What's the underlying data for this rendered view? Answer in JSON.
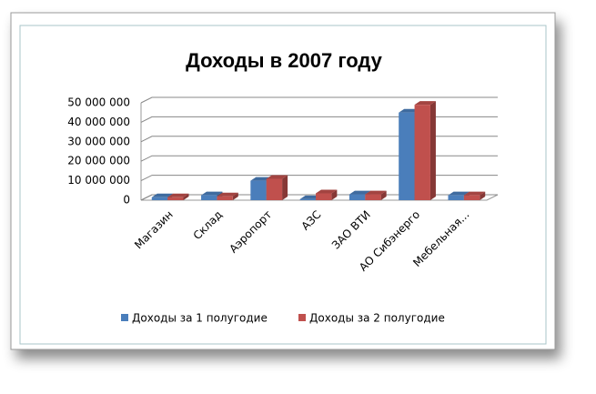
{
  "chart_data": {
    "type": "bar3d",
    "title": "Доходы в 2007 году",
    "categories": [
      "Магазин",
      "Склад",
      "Аэропорт",
      "АЗС",
      "ЗАО ВТИ",
      "АО Сибэнерго",
      "Мебельная..."
    ],
    "series": [
      {
        "name": "Доходы за 1 полугодие",
        "color": "#4a7ebb",
        "values": [
          1500000,
          2500000,
          10000000,
          500000,
          3000000,
          45000000,
          2500000
        ]
      },
      {
        "name": "Доходы за 2 полугодие",
        "color": "#c0504d",
        "values": [
          1500000,
          2000000,
          11000000,
          3500000,
          3000000,
          49000000,
          2500000
        ]
      }
    ],
    "ylim": [
      0,
      50000000
    ],
    "yticks": [
      {
        "value": 50000000,
        "label": "50 000 000"
      },
      {
        "value": 40000000,
        "label": "40 000 000"
      },
      {
        "value": 30000000,
        "label": "30 000 000"
      },
      {
        "value": 20000000,
        "label": "20 000 000"
      },
      {
        "value": 10000000,
        "label": "10 000 000"
      },
      0
    ],
    "grid": true,
    "legend": "bottom"
  }
}
